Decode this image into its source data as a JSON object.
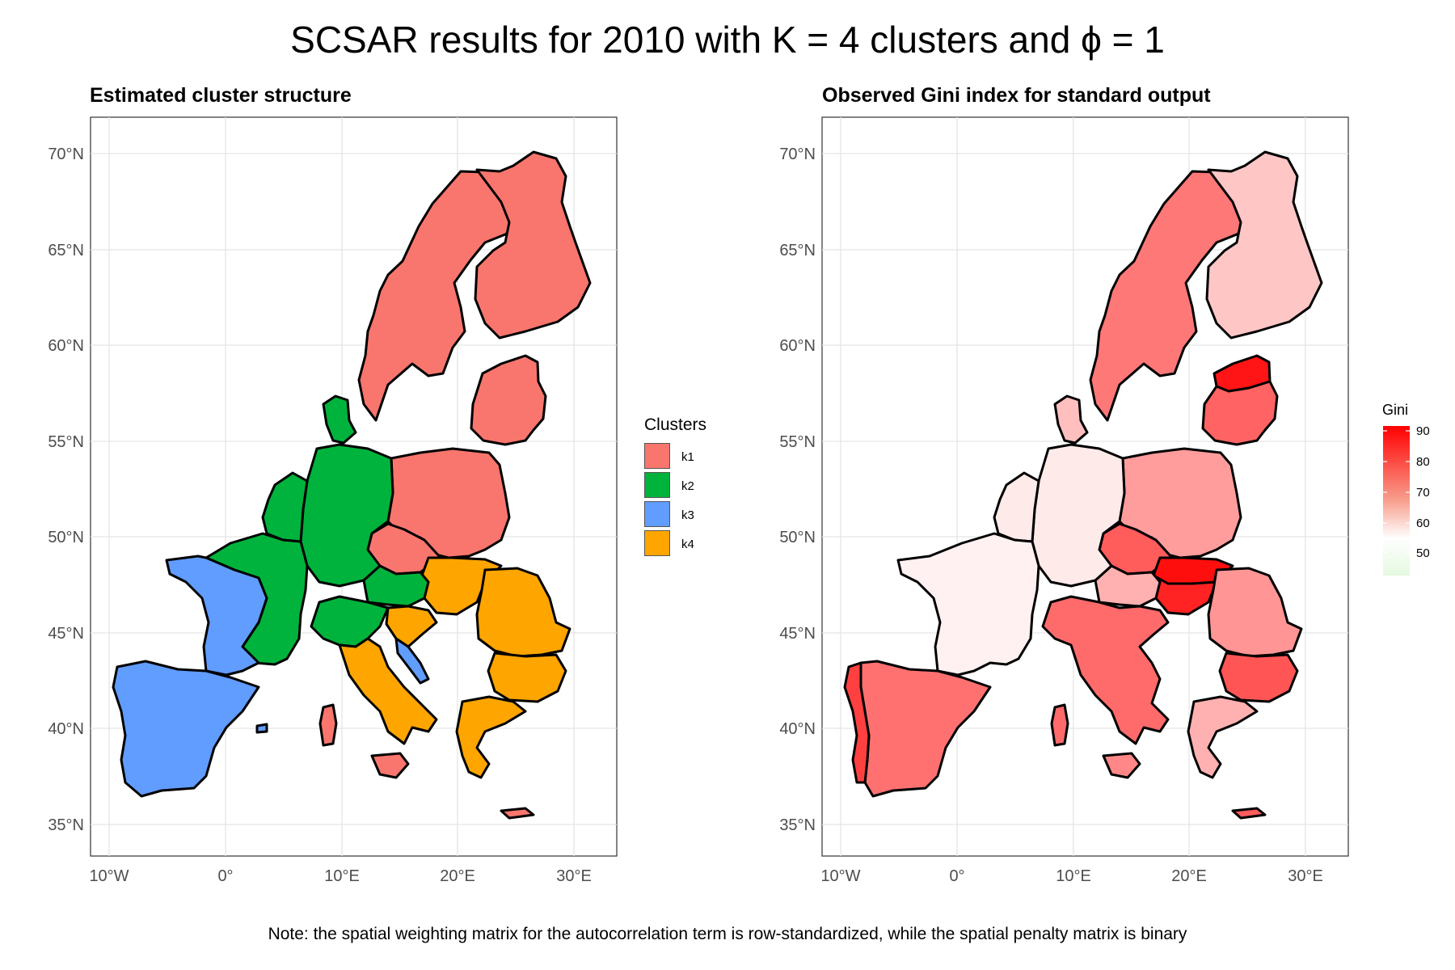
{
  "title": "SCSAR results for 2010 with K = 4 clusters and ϕ = 1",
  "note": "Note: the spatial weighting matrix for the autocorrelation term is row-standardized, while the spatial penalty matrix is binary",
  "axes": {
    "lon_ticks": [
      "10°W",
      "0°",
      "10°E",
      "20°E",
      "30°E"
    ],
    "lat_ticks": [
      "70°N",
      "65°N",
      "60°N",
      "55°N",
      "50°N",
      "45°N",
      "40°N",
      "35°N"
    ]
  },
  "left_panel": {
    "title": "Estimated cluster structure",
    "legend_title": "Clusters",
    "legend": [
      {
        "label": "k1",
        "color": "#F8766D"
      },
      {
        "label": "k2",
        "color": "#00B33C"
      },
      {
        "label": "k3",
        "color": "#619CFF"
      },
      {
        "label": "k4",
        "color": "#FFA500"
      }
    ],
    "regions": [
      {
        "name": "Nordics-Sweden",
        "cluster": "k1"
      },
      {
        "name": "Finland",
        "cluster": "k1"
      },
      {
        "name": "Baltics",
        "cluster": "k1"
      },
      {
        "name": "Poland",
        "cluster": "k1"
      },
      {
        "name": "Czechia",
        "cluster": "k1"
      },
      {
        "name": "Sardinia",
        "cluster": "k1"
      },
      {
        "name": "Sicily",
        "cluster": "k1"
      },
      {
        "name": "Cyprus-Crete",
        "cluster": "k1"
      },
      {
        "name": "Denmark",
        "cluster": "k2"
      },
      {
        "name": "Germany",
        "cluster": "k2"
      },
      {
        "name": "Benelux",
        "cluster": "k2"
      },
      {
        "name": "Eastern France",
        "cluster": "k2"
      },
      {
        "name": "Austria",
        "cluster": "k2"
      },
      {
        "name": "Northern Italy",
        "cluster": "k2"
      },
      {
        "name": "Western France",
        "cluster": "k3"
      },
      {
        "name": "Iberia",
        "cluster": "k3"
      },
      {
        "name": "Croatian coast",
        "cluster": "k3"
      },
      {
        "name": "Slovakia-Hungary",
        "cluster": "k4"
      },
      {
        "name": "Romania",
        "cluster": "k4"
      },
      {
        "name": "Bulgaria",
        "cluster": "k4"
      },
      {
        "name": "Greece",
        "cluster": "k4"
      },
      {
        "name": "Southern Italy",
        "cluster": "k4"
      },
      {
        "name": "Slovenia-Croatia",
        "cluster": "k4"
      }
    ]
  },
  "right_panel": {
    "title": "Observed Gini index for standard output",
    "legend_title": "Gini",
    "legend_ticks": [
      "90",
      "80",
      "70",
      "60",
      "50"
    ],
    "colorbar": {
      "low": "#E5F9E0",
      "mid": "#FFFFFF",
      "high": "#FF0000",
      "min": 45,
      "max": 91
    },
    "regions": [
      {
        "name": "Nordics-Sweden",
        "gini": 74
      },
      {
        "name": "Finland",
        "gini": 63
      },
      {
        "name": "Estonia",
        "gini": 88
      },
      {
        "name": "Latvia-Lithuania",
        "gini": 77
      },
      {
        "name": "Poland",
        "gini": 69
      },
      {
        "name": "Czechia",
        "gini": 78
      },
      {
        "name": "Slovakia-Hungary",
        "gini": 89
      },
      {
        "name": "Hungary south",
        "gini": 86
      },
      {
        "name": "Romania",
        "gini": 70
      },
      {
        "name": "Bulgaria",
        "gini": 79
      },
      {
        "name": "Greece",
        "gini": 66
      },
      {
        "name": "Italy",
        "gini": 76
      },
      {
        "name": "Austria",
        "gini": 66
      },
      {
        "name": "Germany",
        "gini": 58
      },
      {
        "name": "Benelux",
        "gini": 58
      },
      {
        "name": "France",
        "gini": 57
      },
      {
        "name": "Iberia",
        "gini": 75
      },
      {
        "name": "Portugal coast",
        "gini": 82
      },
      {
        "name": "Denmark",
        "gini": 64
      },
      {
        "name": "Sardinia",
        "gini": 76
      },
      {
        "name": "Sicily",
        "gini": 72
      },
      {
        "name": "Cyprus-Crete",
        "gini": 78
      }
    ]
  }
}
